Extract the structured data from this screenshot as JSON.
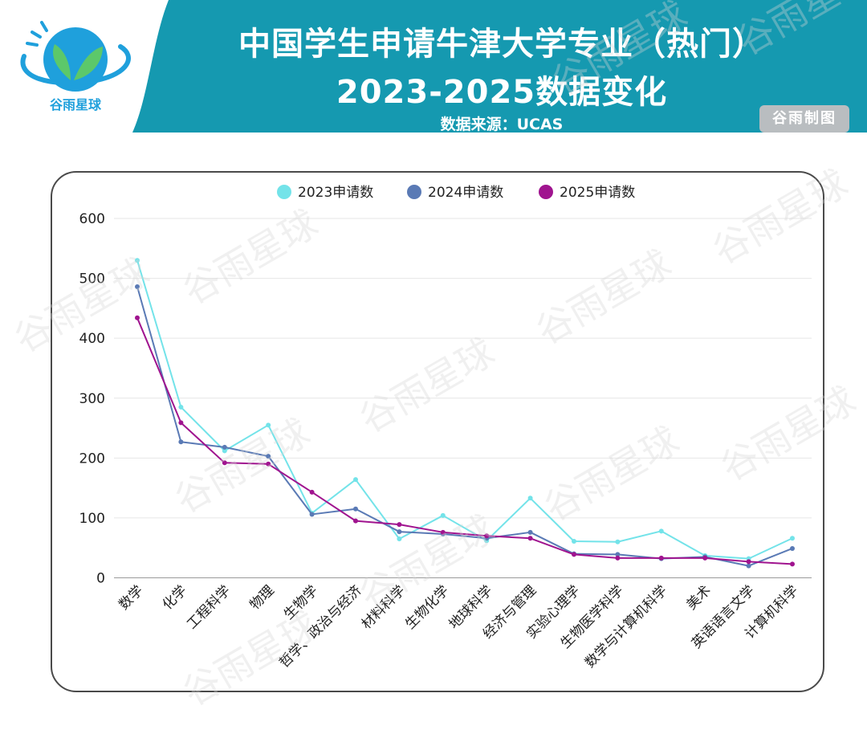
{
  "header": {
    "title_line1": "中国学生申请牛津大学专业（热门）",
    "title_line2": "2023-2025数据变化",
    "source": "数据来源：UCAS",
    "badge": "谷雨制图",
    "logo_text": "谷雨星球"
  },
  "watermark_text": "谷雨星球",
  "colors": {
    "header_bg": "#1599b0",
    "series_2023": "#73e3e9",
    "series_2024": "#5a7ab5",
    "series_2025": "#a0148f"
  },
  "chart_data": {
    "type": "line",
    "title": "",
    "xlabel": "",
    "ylabel": "",
    "ylim": [
      0,
      600
    ],
    "yticks": [
      0,
      100,
      200,
      300,
      400,
      500,
      600
    ],
    "grid": true,
    "legend_position": "top",
    "categories": [
      "数学",
      "化学",
      "工程科学",
      "物理",
      "生物学",
      "哲学、政治与经济",
      "材料科学",
      "生物化学",
      "地球科学",
      "经济与管理",
      "实验心理学",
      "生物医学科学",
      "数学与计算机科学",
      "美术",
      "英语语言文学",
      "计算机科学"
    ],
    "series": [
      {
        "name": "2023申请数",
        "color": "#73e3e9",
        "values": [
          530,
          285,
          212,
          255,
          108,
          164,
          65,
          104,
          62,
          133,
          61,
          60,
          78,
          37,
          32,
          66
        ]
      },
      {
        "name": "2024申请数",
        "color": "#5a7ab5",
        "values": [
          486,
          227,
          218,
          203,
          106,
          115,
          77,
          73,
          66,
          76,
          40,
          39,
          32,
          35,
          20,
          49
        ]
      },
      {
        "name": "2025申请数",
        "color": "#a0148f",
        "values": [
          434,
          259,
          192,
          190,
          143,
          95,
          89,
          76,
          70,
          66,
          39,
          33,
          33,
          33,
          27,
          23
        ]
      }
    ]
  }
}
